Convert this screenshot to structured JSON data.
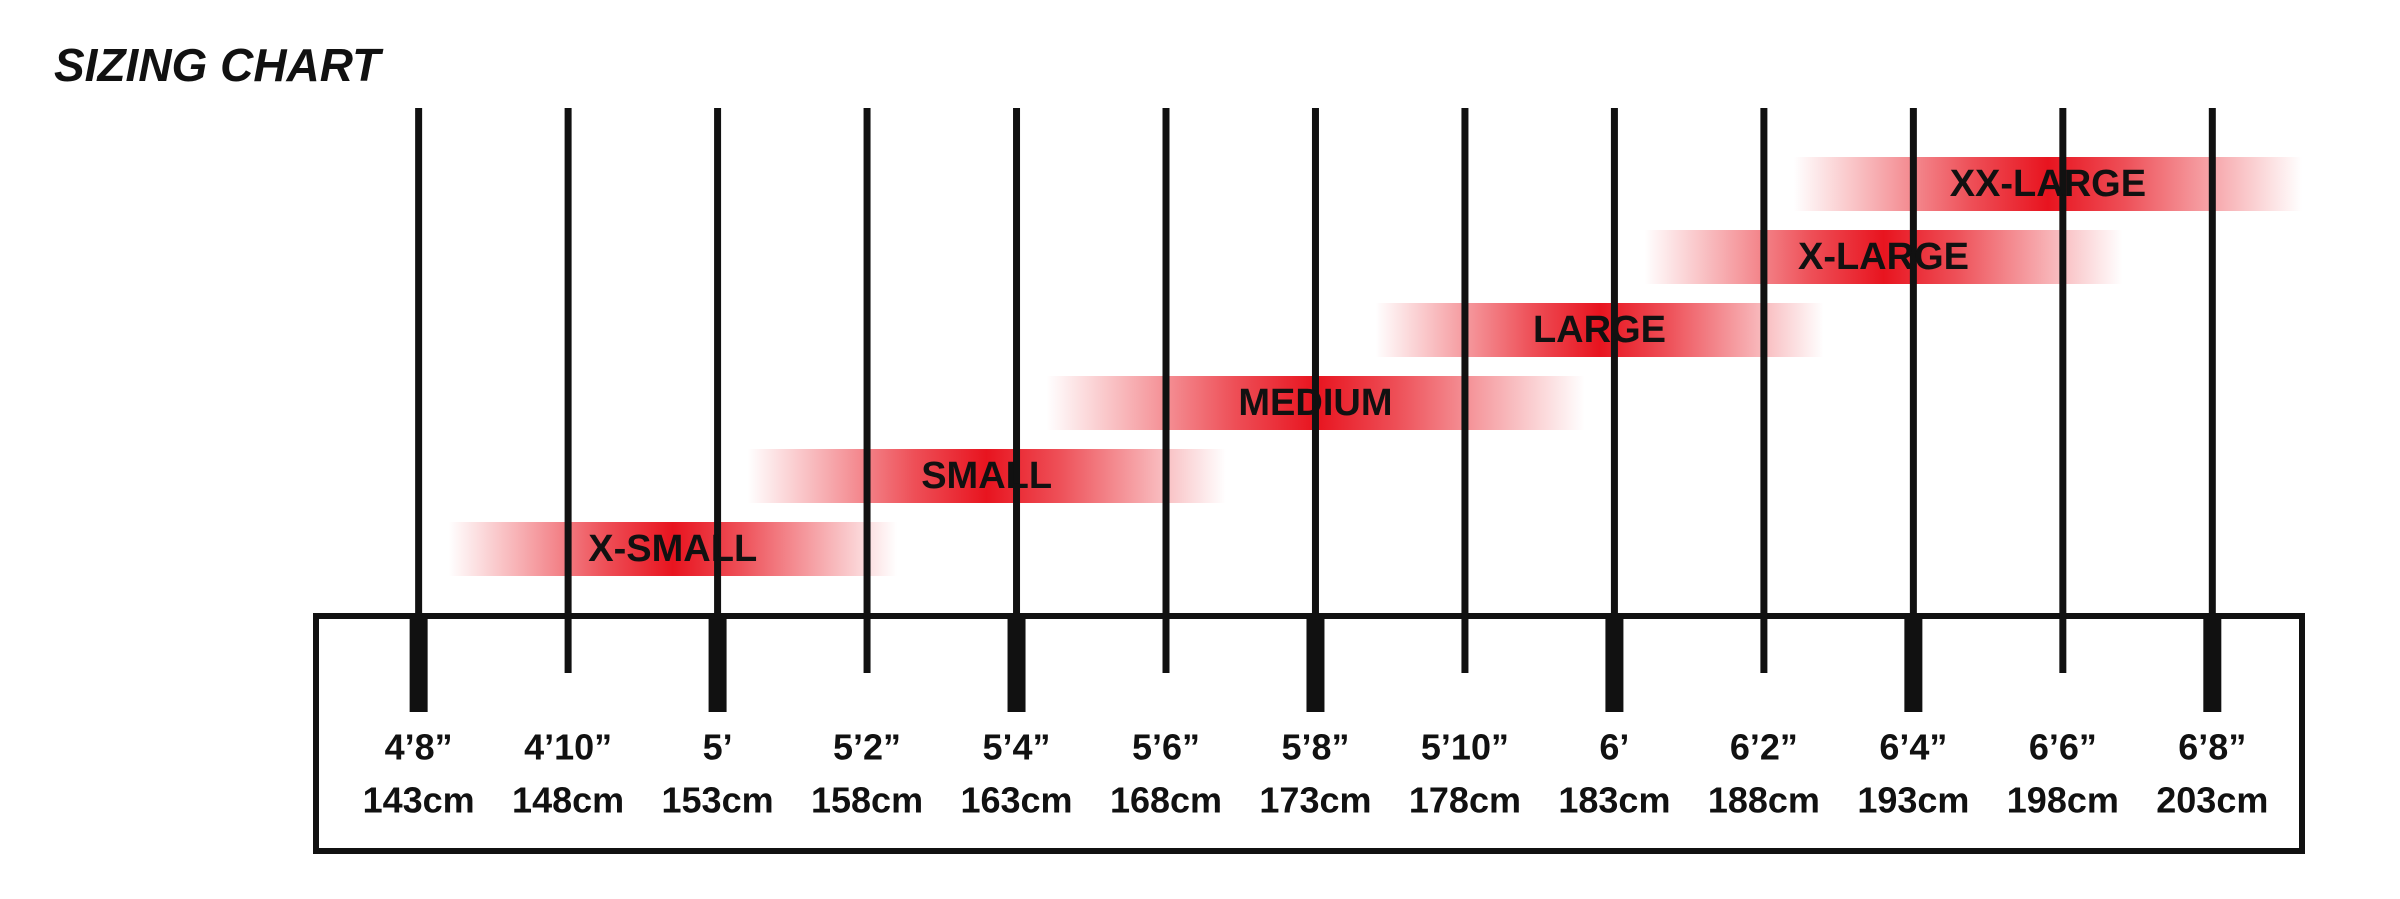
{
  "chart_data": {
    "type": "range-bar",
    "title": "SIZING CHART",
    "color": "#e8141f",
    "xlim": [
      139.5,
      206
    ],
    "xticks": [
      {
        "value": 143,
        "label": "143cm"
      },
      {
        "value": 148,
        "label": "148cm"
      },
      {
        "value": 153,
        "label": "153cm"
      },
      {
        "value": 158,
        "label": "158cm"
      },
      {
        "value": 163,
        "label": "163cm"
      },
      {
        "value": 168,
        "label": "168cm"
      },
      {
        "value": 173,
        "label": "173cm"
      },
      {
        "value": 178,
        "label": "178cm"
      },
      {
        "value": 183,
        "label": "183cm"
      },
      {
        "value": 188,
        "label": "188cm"
      },
      {
        "value": 193,
        "label": "193cm"
      },
      {
        "value": 198,
        "label": "198cm"
      },
      {
        "value": 203,
        "label": "203cm"
      }
    ],
    "imperial_labels": [
      "4’8”",
      "4’10”",
      "5’",
      "5’2”",
      "5’4”",
      "5’6”",
      "5’8”",
      "5’10”",
      "6’",
      "6’2”",
      "6’4”",
      "6’6”",
      "6’8”"
    ],
    "ranges": [
      {
        "name": "X-SMALL",
        "from": 144,
        "to": 159
      },
      {
        "name": "SMALL",
        "from": 154,
        "to": 170
      },
      {
        "name": "MEDIUM",
        "from": 164,
        "to": 182
      },
      {
        "name": "LARGE",
        "from": 175,
        "to": 190
      },
      {
        "name": "X-LARGE",
        "from": 184,
        "to": 200
      },
      {
        "name": "XX-LARGE",
        "from": 189,
        "to": 206
      }
    ]
  }
}
